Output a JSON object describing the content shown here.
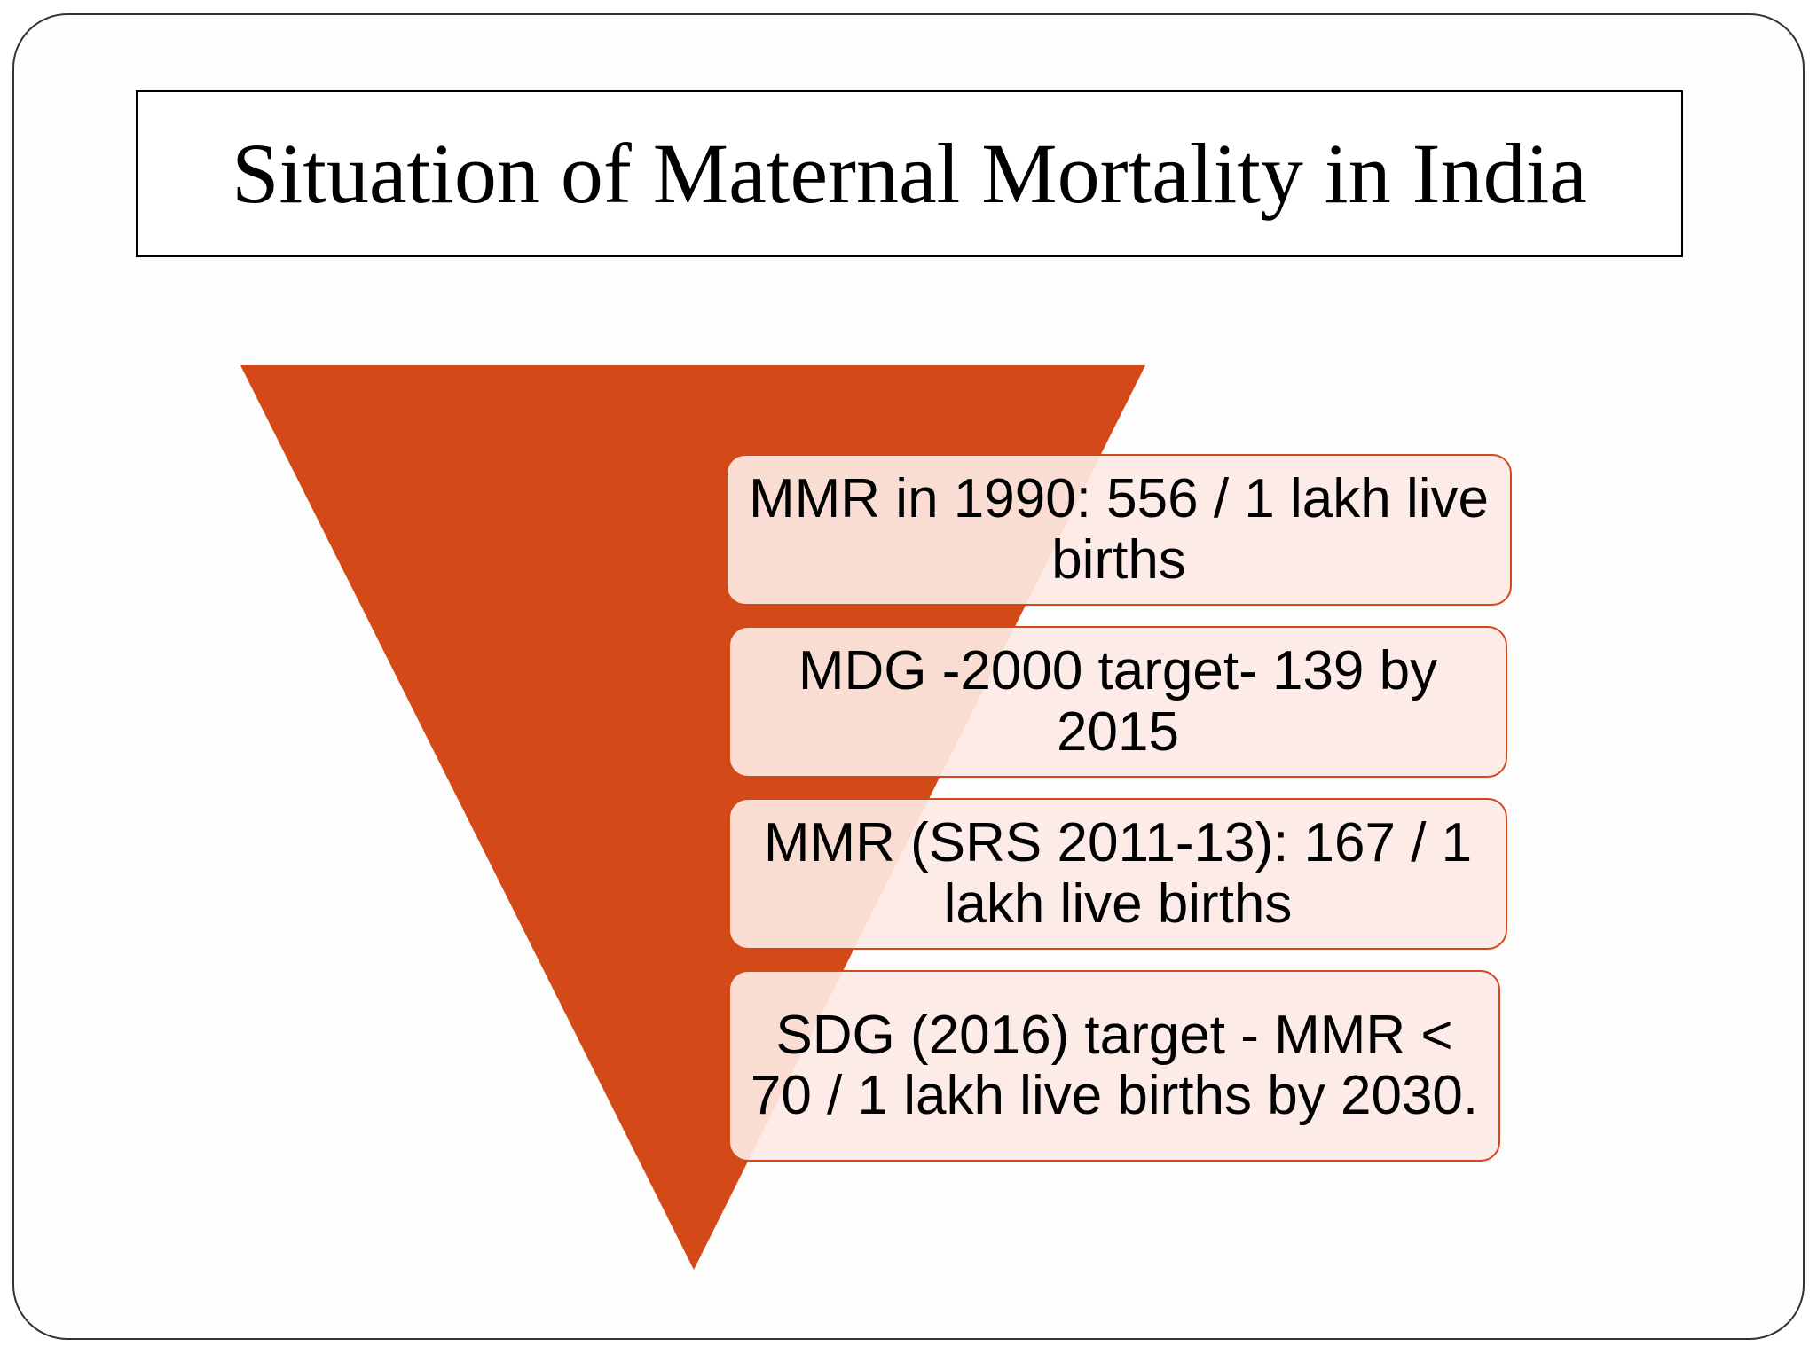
{
  "slide": {
    "title": "Situation of Maternal Mortality in India"
  },
  "funnel": {
    "color": "#d34a18",
    "box_fill": "#fce9e4",
    "box_border": "#d24a1c",
    "items": [
      {
        "text": "MMR in 1990: 556 / 1 lakh live births"
      },
      {
        "text": "MDG -2000 target- 139 by 2015"
      },
      {
        "text": "MMR (SRS 2011-13): 167 / 1 lakh live births"
      },
      {
        "text": "SDG (2016) target - MMR < 70 / 1 lakh live births  by 2030."
      }
    ]
  }
}
